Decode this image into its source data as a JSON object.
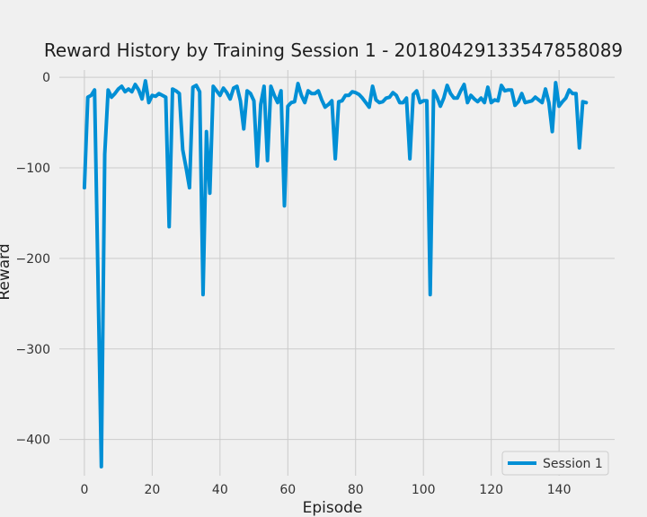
{
  "chart_data": {
    "type": "line",
    "title": "Reward History by Training Session 1 - 20180429133547858089",
    "xlabel": "Episode",
    "ylabel": "Reward",
    "xlim": [
      -7.4,
      156.4
    ],
    "ylim": [
      -440,
      8
    ],
    "xticks": [
      0,
      20,
      40,
      60,
      80,
      100,
      120,
      140
    ],
    "yticks": [
      0,
      -100,
      -200,
      -300,
      -400
    ],
    "xtick_labels": [
      "0",
      "20",
      "40",
      "60",
      "80",
      "100",
      "120",
      "140"
    ],
    "ytick_labels": [
      "0",
      "−100",
      "−200",
      "−300",
      "−400"
    ],
    "grid": true,
    "legend_position": "lower right",
    "colors": {
      "background": "#f0f0f0",
      "grid": "#cbcbcb",
      "series": "#008fd5"
    },
    "series": [
      {
        "name": "Session 1",
        "x": [
          0,
          1,
          2,
          3,
          4,
          5,
          6,
          7,
          8,
          9,
          10,
          11,
          12,
          13,
          14,
          15,
          16,
          17,
          18,
          19,
          20,
          21,
          22,
          23,
          24,
          25,
          26,
          27,
          28,
          29,
          30,
          31,
          32,
          33,
          34,
          35,
          36,
          37,
          38,
          39,
          40,
          41,
          42,
          43,
          44,
          45,
          46,
          47,
          48,
          49,
          50,
          51,
          52,
          53,
          54,
          55,
          56,
          57,
          58,
          59,
          60,
          61,
          62,
          63,
          64,
          65,
          66,
          67,
          68,
          69,
          70,
          71,
          72,
          73,
          74,
          75,
          76,
          77,
          78,
          79,
          80,
          81,
          82,
          83,
          84,
          85,
          86,
          87,
          88,
          89,
          90,
          91,
          92,
          93,
          94,
          95,
          96,
          97,
          98,
          99,
          100,
          101,
          102,
          103,
          104,
          105,
          106,
          107,
          108,
          109,
          110,
          111,
          112,
          113,
          114,
          115,
          116,
          117,
          118,
          119,
          120,
          121,
          122,
          123,
          124,
          125,
          126,
          127,
          128,
          129,
          130,
          131,
          132,
          133,
          134,
          135,
          136,
          137,
          138,
          139,
          140,
          141,
          142,
          143,
          144,
          145,
          146,
          147,
          148
        ],
        "values": [
          -122,
          -22,
          -20,
          -14,
          -220,
          -430,
          -85,
          -14,
          -22,
          -18,
          -13,
          -10,
          -16,
          -13,
          -16,
          -8,
          -14,
          -24,
          -4,
          -28,
          -20,
          -21,
          -18,
          -20,
          -22,
          -165,
          -13,
          -15,
          -18,
          -80,
          -100,
          -122,
          -11,
          -9,
          -16,
          -240,
          -60,
          -128,
          -10,
          -15,
          -20,
          -12,
          -17,
          -24,
          -12,
          -10,
          -26,
          -57,
          -15,
          -18,
          -26,
          -98,
          -30,
          -10,
          -92,
          -10,
          -20,
          -28,
          -15,
          -142,
          -32,
          -28,
          -27,
          -7,
          -20,
          -28,
          -15,
          -18,
          -18,
          -15,
          -25,
          -33,
          -30,
          -26,
          -90,
          -27,
          -26,
          -20,
          -20,
          -16,
          -17,
          -19,
          -23,
          -28,
          -33,
          -10,
          -25,
          -28,
          -27,
          -23,
          -22,
          -17,
          -20,
          -28,
          -28,
          -23,
          -90,
          -19,
          -15,
          -28,
          -26,
          -26,
          -240,
          -15,
          -22,
          -32,
          -23,
          -9,
          -18,
          -23,
          -23,
          -15,
          -8,
          -28,
          -20,
          -24,
          -27,
          -23,
          -28,
          -11,
          -28,
          -25,
          -26,
          -9,
          -15,
          -14,
          -14,
          -31,
          -27,
          -18,
          -28,
          -27,
          -26,
          -22,
          -25,
          -28,
          -13,
          -28,
          -60,
          -6,
          -32,
          -27,
          -23,
          -14,
          -18,
          -18,
          -78,
          -27,
          -28
        ]
      }
    ]
  }
}
